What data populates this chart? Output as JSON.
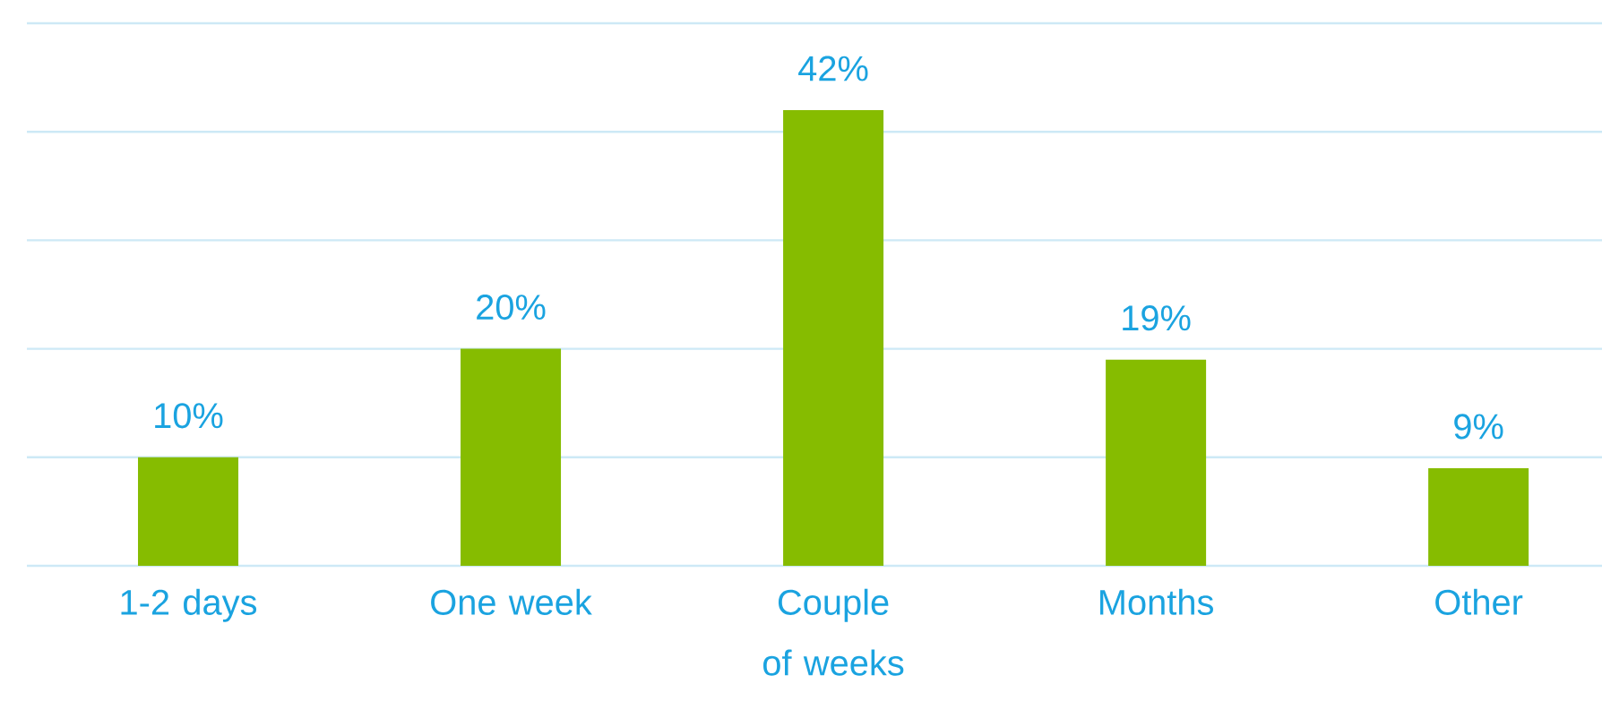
{
  "chart_data": {
    "type": "bar",
    "categories": [
      "1-2 days",
      "One week",
      "Couple of weeks",
      "Months",
      "Other"
    ],
    "values": [
      10,
      20,
      42,
      19,
      9
    ],
    "value_labels": [
      "10%",
      "20%",
      "42%",
      "19%",
      "9%"
    ],
    "color": "#86bc00",
    "ylim": [
      0,
      50
    ],
    "yticks": [
      {
        "value": 0,
        "label": null
      },
      {
        "value": 10,
        "label": null
      },
      {
        "value": 20,
        "label": null
      },
      {
        "value": 30,
        "label": null
      },
      {
        "value": 40,
        "label": null
      },
      {
        "value": 50,
        "label": null
      }
    ],
    "grid": "y",
    "tick_labels": "x"
  }
}
